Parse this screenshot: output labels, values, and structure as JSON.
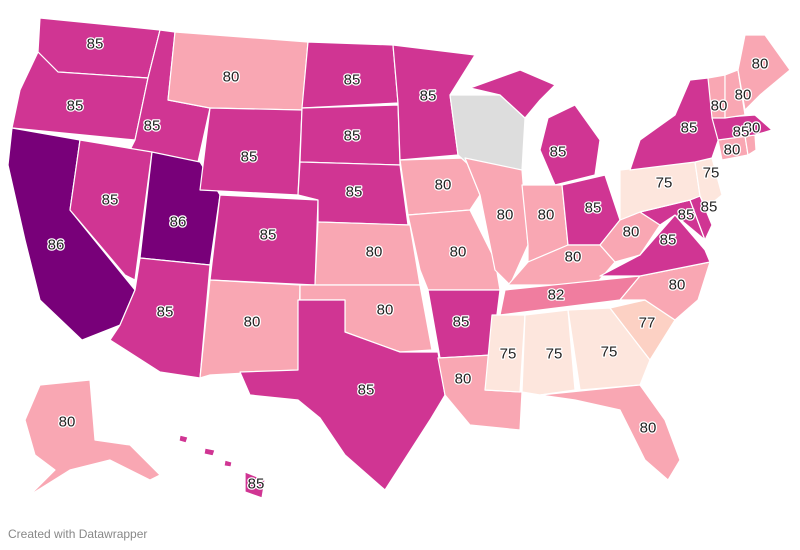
{
  "credit": "Created with Datawrapper",
  "colors": {
    "75": "#fde6dd",
    "77": "#fcd1c4",
    "80": "#f9a7b3",
    "82": "#f07d9f",
    "85": "#d03593",
    "86": "#780079",
    "none": "#dddddd"
  },
  "states": [
    {
      "id": "WA",
      "value": 85
    },
    {
      "id": "OR",
      "value": 85
    },
    {
      "id": "CA",
      "value": 86
    },
    {
      "id": "ID",
      "value": 85
    },
    {
      "id": "NV",
      "value": 85
    },
    {
      "id": "UT",
      "value": 86
    },
    {
      "id": "AZ",
      "value": 85
    },
    {
      "id": "MT",
      "value": 80
    },
    {
      "id": "WY",
      "value": 85
    },
    {
      "id": "CO",
      "value": 85
    },
    {
      "id": "NM",
      "value": 80
    },
    {
      "id": "ND",
      "value": 85
    },
    {
      "id": "SD",
      "value": 85
    },
    {
      "id": "NE",
      "value": 85
    },
    {
      "id": "KS",
      "value": 80
    },
    {
      "id": "OK",
      "value": 80
    },
    {
      "id": "TX",
      "value": 85
    },
    {
      "id": "MN",
      "value": 85
    },
    {
      "id": "IA",
      "value": 80
    },
    {
      "id": "MO",
      "value": 80
    },
    {
      "id": "AR",
      "value": 85
    },
    {
      "id": "LA",
      "value": 80
    },
    {
      "id": "WI",
      "value": null
    },
    {
      "id": "IL",
      "value": 80
    },
    {
      "id": "MI",
      "value": 85
    },
    {
      "id": "IN",
      "value": 80
    },
    {
      "id": "OH",
      "value": 85
    },
    {
      "id": "KY",
      "value": 80
    },
    {
      "id": "TN",
      "value": 82
    },
    {
      "id": "MS",
      "value": 75
    },
    {
      "id": "AL",
      "value": 75
    },
    {
      "id": "GA",
      "value": 75
    },
    {
      "id": "FL",
      "value": 80
    },
    {
      "id": "SC",
      "value": 77
    },
    {
      "id": "NC",
      "value": 80
    },
    {
      "id": "VA",
      "value": 85
    },
    {
      "id": "WV",
      "value": 80
    },
    {
      "id": "MD",
      "value": 85
    },
    {
      "id": "DE",
      "value": 85
    },
    {
      "id": "PA",
      "value": 75
    },
    {
      "id": "NJ",
      "value": 75
    },
    {
      "id": "NY",
      "value": 85
    },
    {
      "id": "CT",
      "value": 80
    },
    {
      "id": "RI",
      "value": 80
    },
    {
      "id": "MA",
      "value": 85
    },
    {
      "id": "VT",
      "value": 80
    },
    {
      "id": "NH",
      "value": 80
    },
    {
      "id": "ME",
      "value": 80
    },
    {
      "id": "AK",
      "value": 80
    },
    {
      "id": "HI",
      "value": 85
    }
  ]
}
